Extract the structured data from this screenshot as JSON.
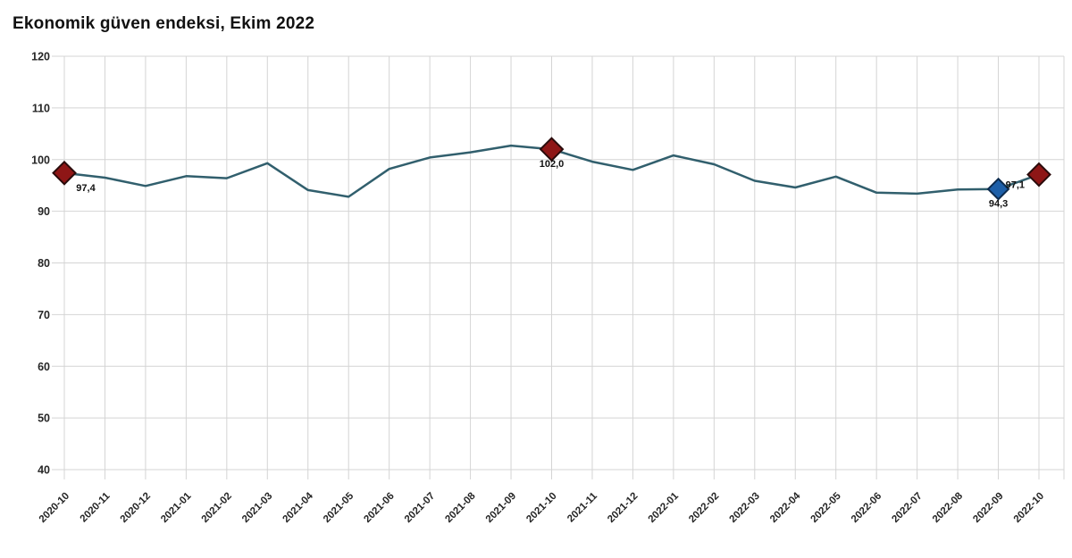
{
  "header": {
    "title": "Ekonomik güven endeksi, Ekim 2022"
  },
  "chart_data": {
    "type": "line",
    "title": "Ekonomik güven endeksi, Ekim 2022",
    "x": [
      "2020-10",
      "2020-11",
      "2020-12",
      "2021-01",
      "2021-02",
      "2021-03",
      "2021-04",
      "2021-05",
      "2021-06",
      "2021-07",
      "2021-08",
      "2021-09",
      "2021-10",
      "2021-11",
      "2021-12",
      "2022-01",
      "2022-02",
      "2022-03",
      "2022-04",
      "2022-05",
      "2022-06",
      "2022-07",
      "2022-08",
      "2022-09",
      "2022-10"
    ],
    "series": [
      {
        "name": "Ekonomik güven endeksi",
        "values": [
          97.4,
          96.5,
          94.9,
          96.8,
          96.4,
          99.3,
          94.1,
          92.8,
          98.2,
          100.4,
          101.4,
          102.7,
          102.0,
          99.6,
          98.0,
          100.8,
          99.1,
          95.9,
          94.6,
          96.7,
          93.6,
          93.4,
          94.2,
          94.3,
          97.1
        ]
      }
    ],
    "ylim": [
      40,
      120
    ],
    "yticks": [
      120,
      110,
      100,
      90,
      80,
      70,
      60,
      50,
      40
    ],
    "grid": true,
    "legend": "none",
    "highlighted_points": [
      {
        "x": "2020-10",
        "value": 97.4,
        "label": "97,4",
        "color_key": "marker_red"
      },
      {
        "x": "2021-10",
        "value": 102.0,
        "label": "102,0",
        "color_key": "marker_red"
      },
      {
        "x": "2022-09",
        "value": 94.3,
        "label": "94,3",
        "color_key": "marker_blue"
      },
      {
        "x": "2022-10",
        "value": 97.1,
        "label": "97,1",
        "color_key": "marker_red"
      }
    ],
    "colors": {
      "line": "#315f6d",
      "grid": "#d4d4d4",
      "tick_text": "#262626",
      "title_text": "#111111",
      "marker_red": "#8e1616",
      "marker_red_border": "#2a0b0b",
      "marker_blue": "#1e5fa8",
      "marker_blue_border": "#0d2b4e",
      "background": "#ffffff"
    }
  }
}
